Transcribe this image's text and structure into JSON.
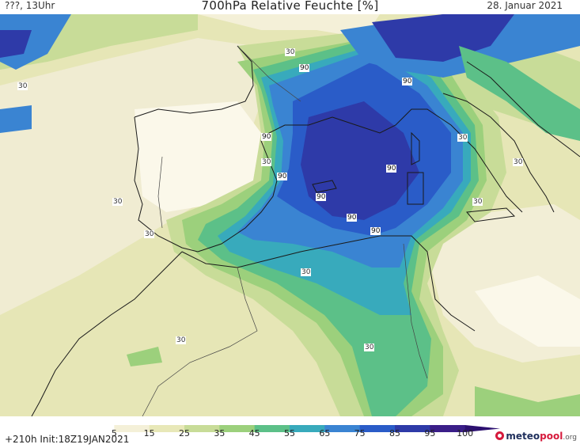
{
  "header": {
    "left_text": "???, 13Uhr",
    "title": "700hPa Relative Feuchte [%]",
    "date": "28. Januar 2021"
  },
  "footer": {
    "run_info": "+210h  Init:18Z19JAN2021",
    "logo_main": "meteo",
    "logo_accent": "pool",
    "logo_suffix": ".org"
  },
  "colorbar": {
    "ticks": [
      "5",
      "15",
      "25",
      "35",
      "45",
      "55",
      "65",
      "75",
      "85",
      "95",
      "100"
    ],
    "colors": [
      "#ffffff",
      "#f4f0d8",
      "#e8e8b8",
      "#c8dc98",
      "#9cd07c",
      "#5cc088",
      "#38aabc",
      "#3a84d2",
      "#2a5cc8",
      "#2e3aa8",
      "#3a1e88",
      "#2c1070"
    ]
  },
  "contour_labels": [
    {
      "text": "30"
    },
    {
      "text": "30"
    },
    {
      "text": "90"
    },
    {
      "text": "90"
    },
    {
      "text": "90"
    },
    {
      "text": "30"
    },
    {
      "text": "90"
    },
    {
      "text": "90"
    },
    {
      "text": "90"
    },
    {
      "text": "90"
    },
    {
      "text": "90"
    },
    {
      "text": "30"
    },
    {
      "text": "30"
    },
    {
      "text": "30"
    },
    {
      "text": "30"
    },
    {
      "text": "30"
    },
    {
      "text": "30"
    },
    {
      "text": "30"
    },
    {
      "text": "30"
    }
  ]
}
